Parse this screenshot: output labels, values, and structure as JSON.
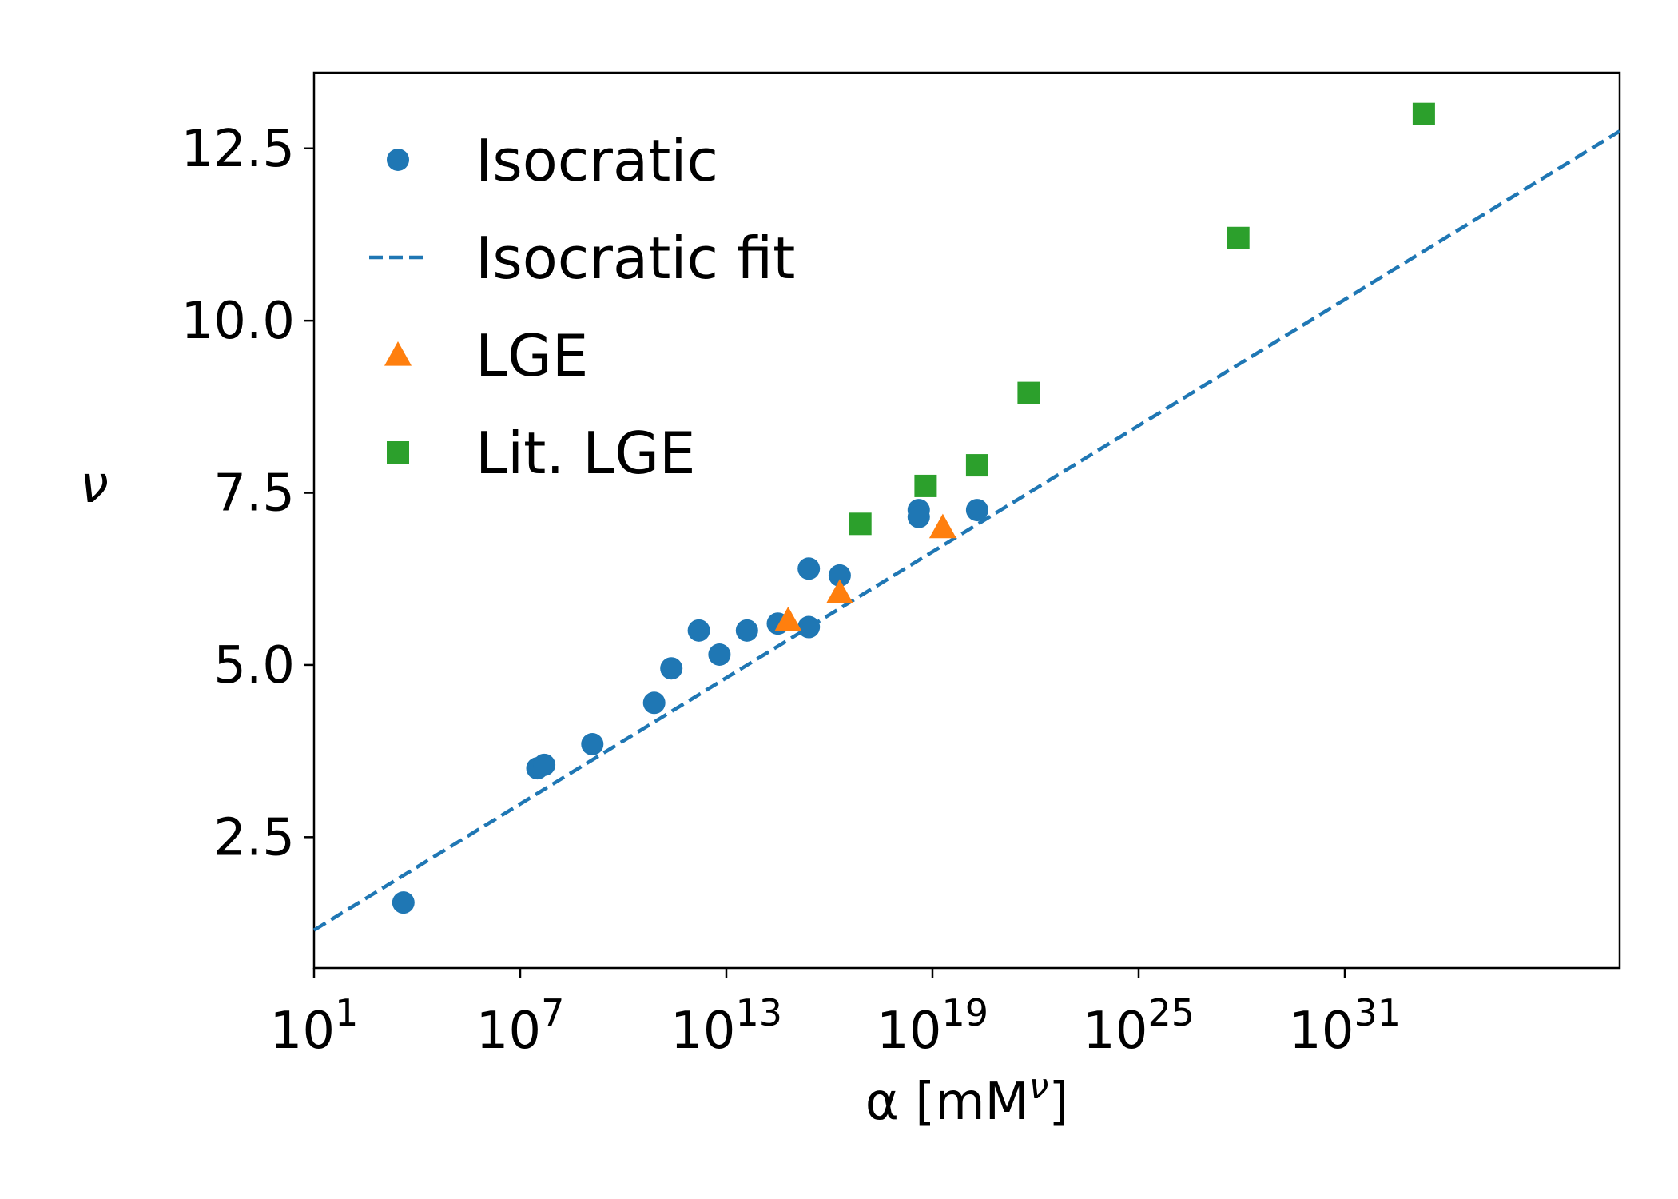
{
  "chart_data": {
    "type": "scatter",
    "title": "",
    "xlabel": "α  [mM^ν]",
    "ylabel": "ν",
    "x_scale": "log",
    "x_exponent_range": [
      1,
      39
    ],
    "ylim": [
      0.6,
      13.6
    ],
    "x_ticks": [
      {
        "base": "10",
        "exp": "1"
      },
      {
        "base": "10",
        "exp": "7"
      },
      {
        "base": "10",
        "exp": "13"
      },
      {
        "base": "10",
        "exp": "19"
      },
      {
        "base": "10",
        "exp": "25"
      },
      {
        "base": "10",
        "exp": "31"
      }
    ],
    "y_ticks": [
      "2.5",
      "5.0",
      "7.5",
      "10.0",
      "12.5"
    ],
    "grid": false,
    "legend_position": "top-left",
    "series": [
      {
        "name": "Isocratic",
        "kind": "scatter",
        "marker": "circle",
        "color": "#1f77b4",
        "log10_x": [
          3.6,
          7.5,
          7.7,
          9.1,
          10.9,
          11.4,
          12.2,
          12.8,
          13.6,
          14.5,
          15.4,
          15.4,
          16.3,
          18.6,
          18.6,
          20.3
        ],
        "y": [
          1.55,
          3.5,
          3.55,
          3.85,
          4.45,
          4.95,
          5.5,
          5.15,
          5.5,
          5.6,
          6.4,
          5.55,
          6.3,
          7.25,
          7.15,
          7.25
        ]
      },
      {
        "name": "Isocratic fit",
        "kind": "line",
        "line_style": "dashed",
        "color": "#1f77b4",
        "log10_x": [
          1,
          39
        ],
        "y": [
          1.15,
          12.75
        ]
      },
      {
        "name": "LGE",
        "kind": "scatter",
        "marker": "triangle",
        "color": "#ff7f0e",
        "log10_x": [
          14.8,
          16.3,
          19.3
        ],
        "y": [
          5.65,
          6.05,
          7.0
        ]
      },
      {
        "name": "Lit. LGE",
        "kind": "scatter",
        "marker": "square",
        "color": "#2ca02c",
        "log10_x": [
          16.9,
          18.8,
          20.3,
          21.8,
          27.9,
          33.3
        ],
        "y": [
          7.05,
          7.6,
          7.9,
          8.95,
          11.2,
          13.0
        ]
      }
    ]
  }
}
